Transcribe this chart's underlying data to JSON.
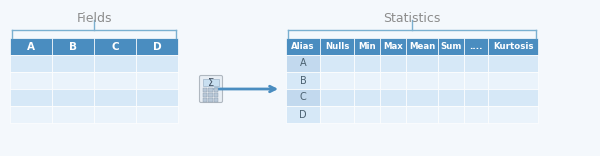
{
  "bg_color": "#f4f8fc",
  "fields_label": "Fields",
  "statistics_label": "Statistics",
  "fields_cols": [
    "A",
    "B",
    "C",
    "D"
  ],
  "fields_rows": 4,
  "stats_cols": [
    "Alias",
    "Nulls",
    "Min",
    "Max",
    "Mean",
    "Sum",
    "....",
    "Kurtosis"
  ],
  "stats_rows": [
    "A",
    "B",
    "C",
    "D"
  ],
  "header_bg": "#4a8dc0",
  "header_text": "#ffffff",
  "row_even_bg": "#d6e8f7",
  "row_odd_bg": "#eaf3fb",
  "alias_col_bg_even": "#c2d9ee",
  "alias_col_bg_odd": "#d6e8f7",
  "grid_color": "#ffffff",
  "label_color": "#8c8c8c",
  "arrow_color": "#4a8dc0",
  "brace_color": "#7ab0d0",
  "col_widths_stats": [
    34,
    34,
    26,
    26,
    32,
    26,
    24,
    50
  ]
}
